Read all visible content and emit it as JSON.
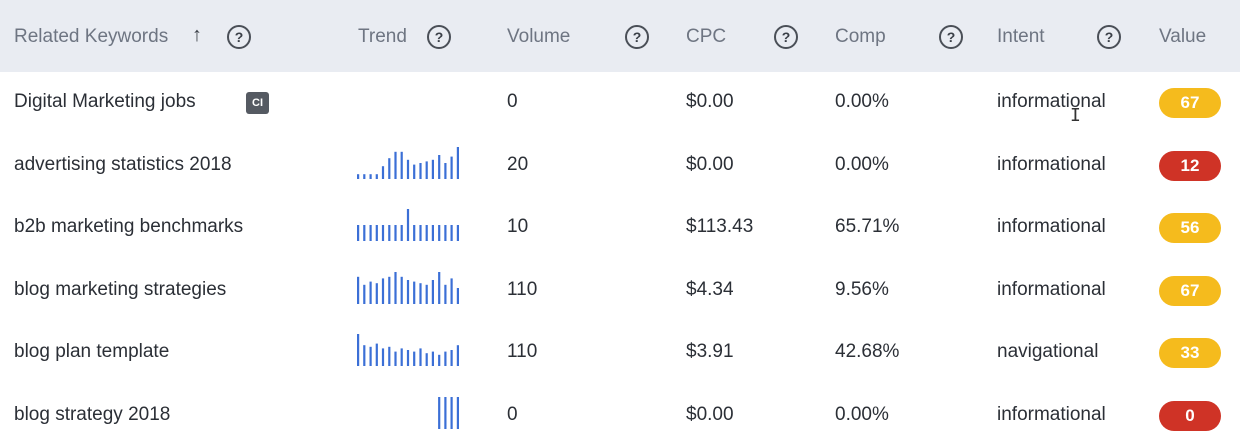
{
  "colors": {
    "header_bg": "#e9ecf2",
    "trend_bar": "#3b6fd6",
    "value_yellow": "#f5bb1d",
    "value_red": "#cf3326"
  },
  "header": {
    "keyword": "Related Keywords",
    "sort_icon": "arrow-up-icon",
    "help_icon": "question-circle-icon",
    "help_symbol": "?",
    "sort_symbol": "↑",
    "trend": "Trend",
    "volume": "Volume",
    "cpc": "CPC",
    "comp": "Comp",
    "intent": "Intent",
    "value": "Value"
  },
  "rows": [
    {
      "keyword": "Digital Marketing jobs",
      "tag": "CI",
      "trend": [],
      "volume": "0",
      "cpc": "$0.00",
      "comp": "0.00%",
      "intent": "informational",
      "value": "67",
      "value_color": "yellow"
    },
    {
      "keyword": "advertising statistics 2018",
      "tag": "",
      "trend": [
        0.15,
        0.15,
        0.15,
        0.15,
        0.4,
        0.65,
        0.85,
        0.85,
        0.6,
        0.45,
        0.5,
        0.55,
        0.6,
        0.75,
        0.5,
        0.7,
        1.0
      ],
      "volume": "20",
      "cpc": "$0.00",
      "comp": "0.00%",
      "intent": "informational",
      "value": "12",
      "value_color": "red"
    },
    {
      "keyword": "b2b marketing benchmarks",
      "tag": "",
      "trend": [
        0.5,
        0.5,
        0.5,
        0.5,
        0.5,
        0.5,
        0.5,
        0.5,
        1.0,
        0.5,
        0.5,
        0.5,
        0.5,
        0.5,
        0.5,
        0.5,
        0.5
      ],
      "volume": "10",
      "cpc": "$113.43",
      "comp": "65.71%",
      "intent": "informational",
      "value": "56",
      "value_color": "yellow"
    },
    {
      "keyword": "blog marketing strategies",
      "tag": "",
      "trend": [
        0.85,
        0.6,
        0.7,
        0.65,
        0.8,
        0.85,
        1.0,
        0.85,
        0.75,
        0.7,
        0.65,
        0.6,
        0.75,
        1.0,
        0.6,
        0.8,
        0.5
      ],
      "volume": "110",
      "cpc": "$4.34",
      "comp": "9.56%",
      "intent": "informational",
      "value": "67",
      "value_color": "yellow"
    },
    {
      "keyword": "blog plan template",
      "tag": "",
      "trend": [
        1.0,
        0.65,
        0.6,
        0.7,
        0.55,
        0.6,
        0.45,
        0.55,
        0.5,
        0.45,
        0.55,
        0.4,
        0.45,
        0.35,
        0.45,
        0.5,
        0.65
      ],
      "volume": "110",
      "cpc": "$3.91",
      "comp": "42.68%",
      "intent": "navigational",
      "value": "33",
      "value_color": "yellow"
    },
    {
      "keyword": "blog strategy 2018",
      "tag": "",
      "trend": [
        0,
        0,
        0,
        0,
        0,
        0,
        0,
        0,
        0,
        0,
        0,
        0,
        0,
        1.0,
        1.0,
        1.0,
        1.0
      ],
      "volume": "0",
      "cpc": "$0.00",
      "comp": "0.00%",
      "intent": "informational",
      "value": "0",
      "value_color": "red"
    }
  ],
  "cursor_icon": "text-cursor-icon"
}
